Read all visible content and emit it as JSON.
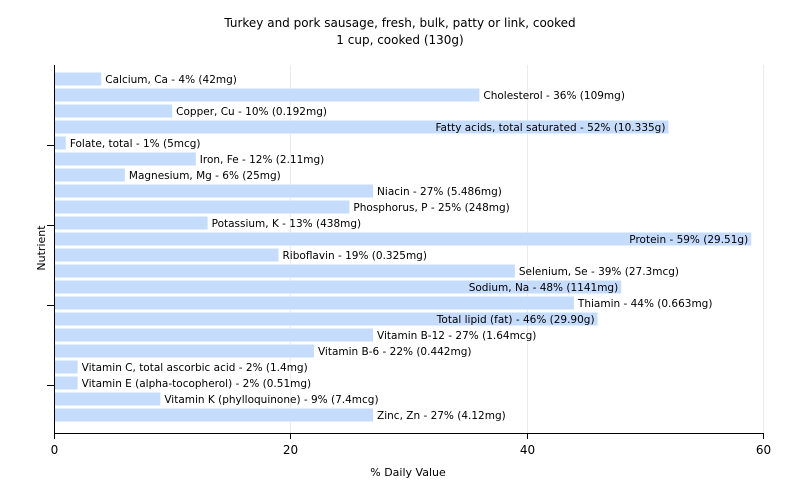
{
  "chart_data": {
    "type": "bar",
    "orientation": "horizontal",
    "title": "Turkey and pork sausage, fresh, bulk, patty or link, cooked",
    "subtitle": "1 cup, cooked (130g)",
    "xlabel": "% Daily Value",
    "ylabel": "Nutrient",
    "xlim": [
      0,
      60
    ],
    "xticks": [
      "0",
      "20",
      "40",
      "60"
    ],
    "grid": true,
    "bar_color": "#c6dcfd",
    "categories": [
      "Calcium, Ca",
      "Cholesterol",
      "Copper, Cu",
      "Fatty acids, total saturated",
      "Folate, total",
      "Iron, Fe",
      "Magnesium, Mg",
      "Niacin",
      "Phosphorus, P",
      "Potassium, K",
      "Protein",
      "Riboflavin",
      "Selenium, Se",
      "Sodium, Na",
      "Thiamin",
      "Total lipid (fat)",
      "Vitamin B-12",
      "Vitamin B-6",
      "Vitamin C, total ascorbic acid",
      "Vitamin E (alpha-tocopherol)",
      "Vitamin K (phylloquinone)",
      "Zinc, Zn"
    ],
    "values": [
      4,
      36,
      10,
      52,
      1,
      12,
      6,
      27,
      25,
      13,
      59,
      19,
      39,
      48,
      44,
      46,
      27,
      22,
      2,
      2,
      9,
      27
    ],
    "labels": [
      "Calcium, Ca - 4% (42mg)",
      "Cholesterol - 36% (109mg)",
      "Copper, Cu - 10% (0.192mg)",
      "Fatty acids, total saturated - 52% (10.335g)",
      "Folate, total - 1% (5mcg)",
      "Iron, Fe - 12% (2.11mg)",
      "Magnesium, Mg - 6% (25mg)",
      "Niacin - 27% (5.486mg)",
      "Phosphorus, P - 25% (248mg)",
      "Potassium, K - 13% (438mg)",
      "Protein - 59% (29.51g)",
      "Riboflavin - 19% (0.325mg)",
      "Selenium, Se - 39% (27.3mcg)",
      "Sodium, Na - 48% (1141mg)",
      "Thiamin - 44% (0.663mg)",
      "Total lipid (fat) - 46% (29.90g)",
      "Vitamin B-12 - 27% (1.64mcg)",
      "Vitamin B-6 - 22% (0.442mg)",
      "Vitamin C, total ascorbic acid - 2% (1.4mg)",
      "Vitamin E (alpha-tocopherol) - 2% (0.51mg)",
      "Vitamin K (phylloquinone) - 9% (7.4mcg)",
      "Zinc, Zn - 27% (4.12mg)"
    ]
  }
}
